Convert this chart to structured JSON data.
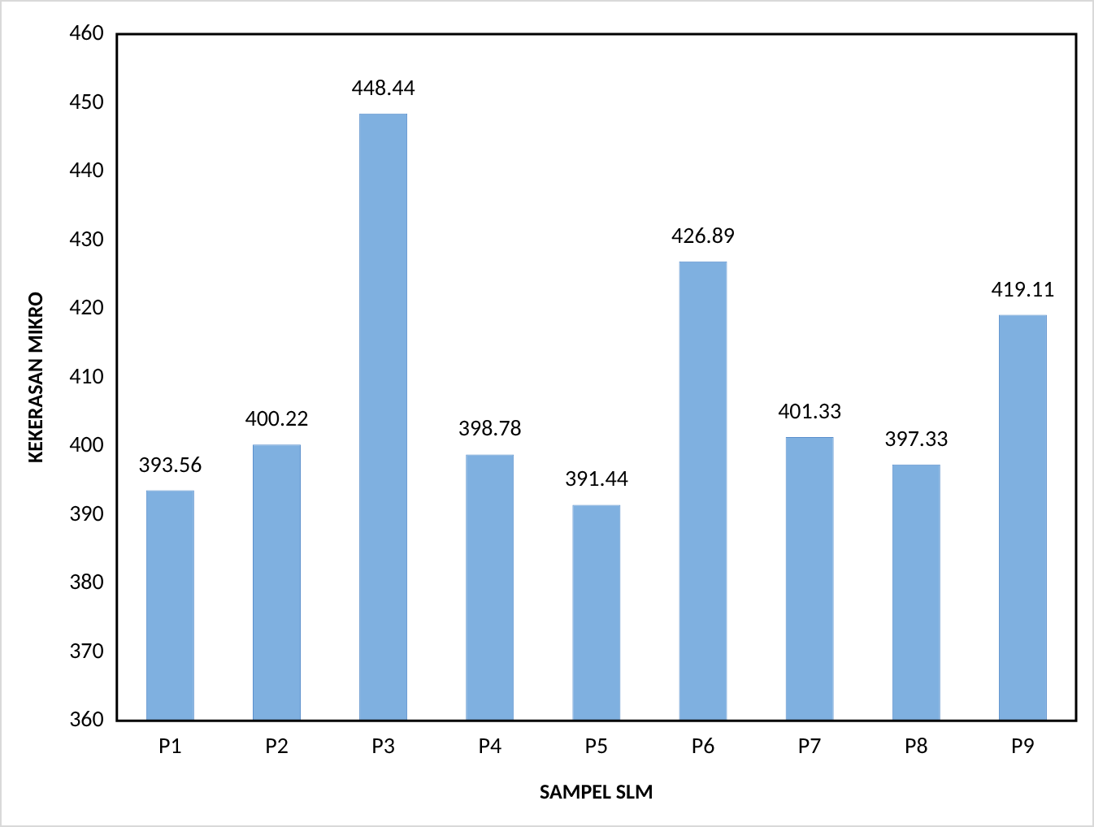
{
  "chart_data": {
    "type": "bar",
    "xlabel": "SAMPEL SLM",
    "ylabel": "KEKERASAN MIKRO",
    "categories": [
      "P1",
      "P2",
      "P3",
      "P4",
      "P5",
      "P6",
      "P7",
      "P8",
      "P9"
    ],
    "values": [
      393.56,
      400.22,
      448.44,
      398.78,
      391.44,
      426.89,
      401.33,
      397.33,
      419.11
    ],
    "color": "#7fb0e0",
    "ylim": [
      360,
      460
    ],
    "yticks": [
      360,
      370,
      380,
      390,
      400,
      410,
      420,
      430,
      440,
      450,
      460
    ],
    "grid": false,
    "legend": false,
    "data_labels": true
  }
}
